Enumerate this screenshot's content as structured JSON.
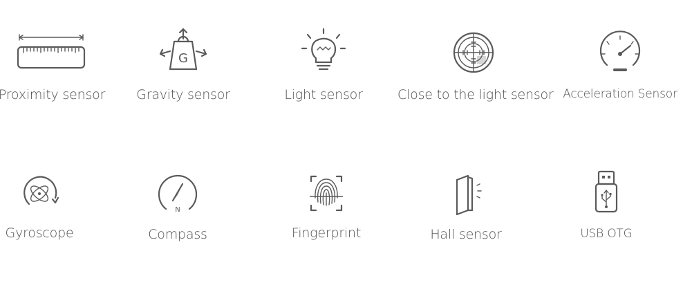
{
  "sensors": [
    {
      "label": "Proximity sensor",
      "icon": "ruler-icon"
    },
    {
      "label": "Gravity sensor",
      "icon": "weight-arrows-icon",
      "icon_text": "G"
    },
    {
      "label": "Light sensor",
      "icon": "lightbulb-icon"
    },
    {
      "label": "Close to the light sensor",
      "icon": "crosshair-icon"
    },
    {
      "label": "Acceleration Sensor",
      "icon": "speedometer-icon"
    },
    {
      "label": "Gyroscope",
      "icon": "gyroscope-icon"
    },
    {
      "label": "Compass",
      "icon": "compass-icon",
      "icon_text": "N"
    },
    {
      "label": "Fingerprint",
      "icon": "fingerprint-icon"
    },
    {
      "label": "Hall sensor",
      "icon": "hall-sensor-icon"
    },
    {
      "label": "USB OTG",
      "icon": "usb-icon"
    }
  ],
  "colors": {
    "icon": "#5a5a5a",
    "text": "#505050",
    "background": "#ffffff"
  }
}
